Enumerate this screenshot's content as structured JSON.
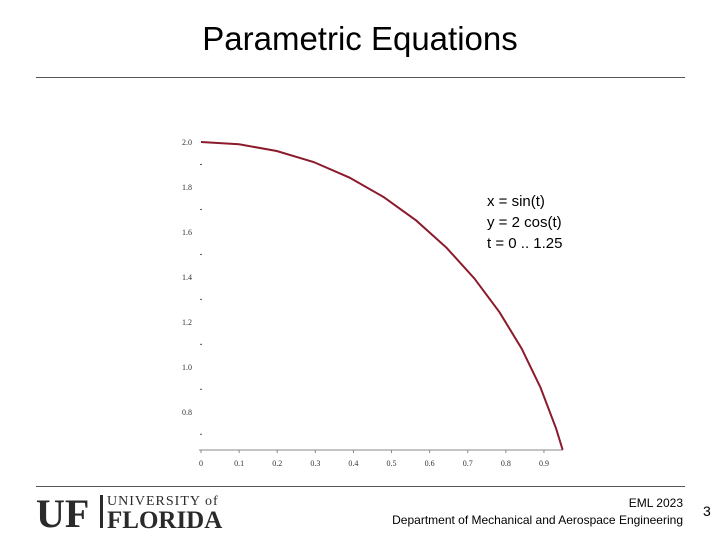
{
  "slide": {
    "title": "Parametric Equations",
    "page_number": "3"
  },
  "equations": [
    "x = sin(t)",
    "y = 2 cos(t)",
    "t = 0 .. 1.25"
  ],
  "footer": {
    "course": "EML 2023",
    "department": "Department of Mechanical and Aerospace Engineering",
    "logo_text": {
      "mark": "UF",
      "line1": "UNIVERSITY of",
      "line2": "FLORIDA"
    }
  },
  "colors": {
    "curve": "#8b1a2b",
    "logo": "#2a2a2a"
  },
  "chart_data": {
    "type": "line",
    "title": "",
    "xlabel": "",
    "ylabel": "",
    "xlim": [
      0,
      0.95
    ],
    "ylim": [
      0.63,
      2.0
    ],
    "x_ticks": [
      0,
      0.1,
      0.2,
      0.3,
      0.4,
      0.5,
      0.6,
      0.7,
      0.8,
      0.9
    ],
    "x_tick_labels": [
      "0",
      "0.1",
      "0.2",
      "0.3",
      "0.4",
      "0.5",
      "0.6",
      "0.7",
      "0.8",
      "0.9"
    ],
    "y_ticks": [
      2.0,
      1.8,
      1.6,
      1.4,
      1.2,
      1.0,
      0.8
    ],
    "y_tick_labels": [
      "2.0",
      "1.8",
      "1.6",
      "1.4",
      "1.2",
      "1.0",
      "0.8"
    ],
    "series": [
      {
        "x": [
          0.0,
          0.0998,
          0.1987,
          0.2955,
          0.3894,
          0.4794,
          0.5646,
          0.6442,
          0.7174,
          0.7833,
          0.8415,
          0.8912,
          0.932,
          0.949
        ],
        "y": [
          2.0,
          1.99,
          1.96,
          1.911,
          1.842,
          1.755,
          1.651,
          1.53,
          1.393,
          1.243,
          1.081,
          0.907,
          0.725,
          0.631
        ]
      }
    ],
    "grid": false,
    "legend": "none"
  }
}
